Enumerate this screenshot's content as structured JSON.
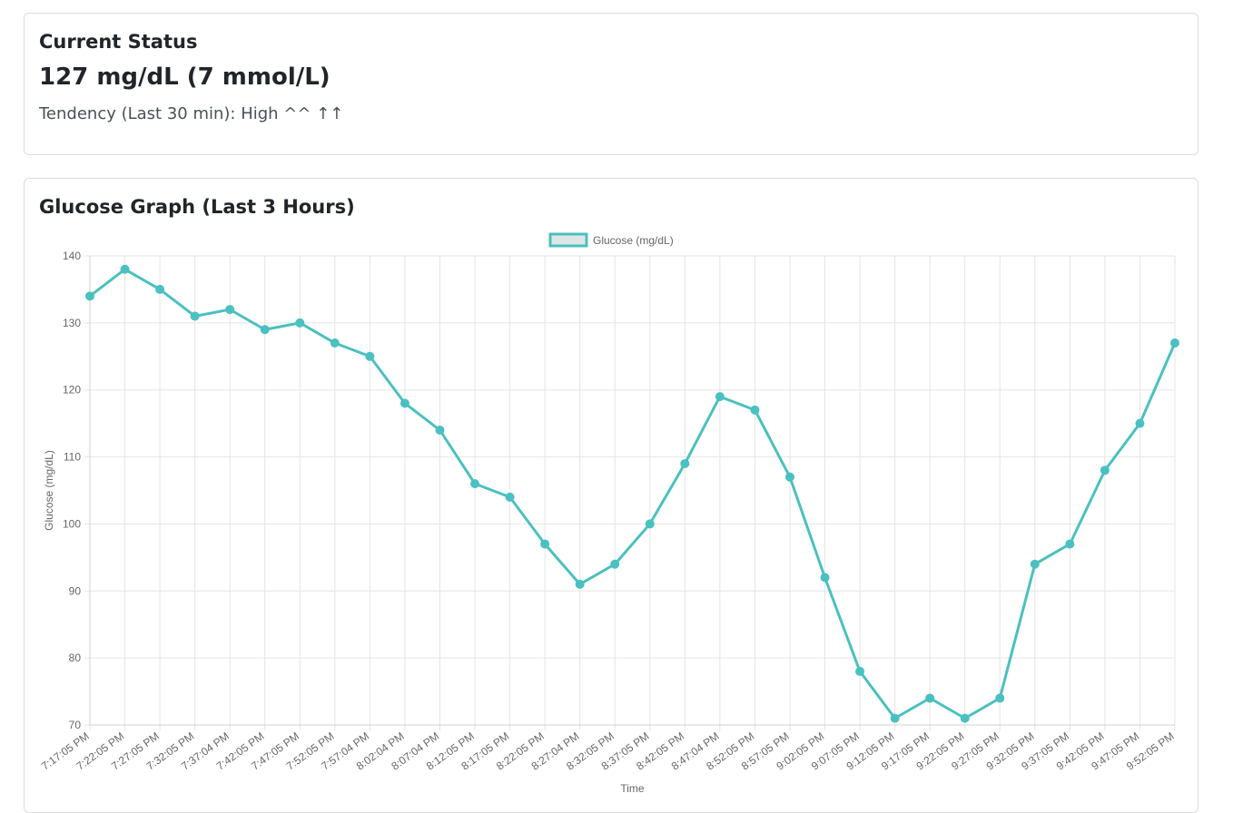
{
  "status": {
    "title": "Current Status",
    "value": "127 mg/dL (7 mmol/L)",
    "tendency": "Tendency (Last 30 min): High ^^ ↑↑"
  },
  "graph": {
    "title": "Glucose Graph (Last 3 Hours)"
  },
  "colors": {
    "line": "#4bc0c0",
    "legend_fill": "#dde6e6",
    "grid": "#e5e5e5",
    "text": "#666666"
  },
  "chart_data": {
    "type": "line",
    "title": "",
    "xlabel": "Time",
    "ylabel": "Glucose (mg/dL)",
    "ylim": [
      70,
      140
    ],
    "yticks": [
      70,
      80,
      90,
      100,
      110,
      120,
      130,
      140
    ],
    "grid": true,
    "legend_position": "top-center",
    "categories": [
      "7:17:05 PM",
      "7:22:05 PM",
      "7:27:05 PM",
      "7:32:05 PM",
      "7:37:04 PM",
      "7:42:05 PM",
      "7:47:05 PM",
      "7:52:05 PM",
      "7:57:04 PM",
      "8:02:04 PM",
      "8:07:04 PM",
      "8:12:05 PM",
      "8:17:05 PM",
      "8:22:05 PM",
      "8:27:04 PM",
      "8:32:05 PM",
      "8:37:05 PM",
      "8:42:05 PM",
      "8:47:04 PM",
      "8:52:05 PM",
      "8:57:05 PM",
      "9:02:05 PM",
      "9:07:05 PM",
      "9:12:05 PM",
      "9:17:05 PM",
      "9:22:05 PM",
      "9:27:05 PM",
      "9:32:05 PM",
      "9:37:05 PM",
      "9:42:05 PM",
      "9:47:05 PM",
      "9:52:05 PM"
    ],
    "series": [
      {
        "name": "Glucose (mg/dL)",
        "values": [
          134,
          138,
          135,
          131,
          132,
          129,
          130,
          127,
          125,
          118,
          114,
          106,
          104,
          97,
          91,
          94,
          100,
          109,
          119,
          117,
          107,
          92,
          78,
          71,
          74,
          71,
          74,
          94,
          97,
          108,
          115,
          127
        ]
      }
    ]
  }
}
